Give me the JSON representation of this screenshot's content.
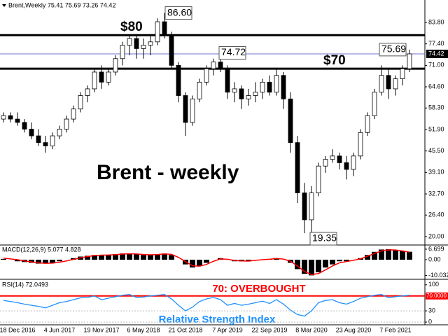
{
  "chart_data": [
    {
      "type": "candlestick",
      "header": "Brent,Weekly 75.41 75.69 73.26 74.42",
      "watermark": "Brent - weekly",
      "categories": [
        null,
        null,
        "18 Dec 2016",
        null,
        null,
        null,
        null,
        null,
        "4 Jun 2017",
        null,
        null,
        null,
        null,
        null,
        "19 Nov 2017",
        null,
        null,
        null,
        null,
        null,
        "6 May 2018",
        null,
        null,
        null,
        null,
        null,
        "21 Oct 2018",
        null,
        null,
        null,
        null,
        null,
        "7 Apr 2019",
        null,
        null,
        null,
        null,
        null,
        "22 Sep 2019",
        null,
        null,
        null,
        null,
        null,
        "8 Mar 2020",
        null,
        null,
        null,
        null,
        null,
        "23 Aug 2020",
        null,
        null,
        null,
        null,
        null,
        "7 Feb 2021",
        null,
        null
      ],
      "open": [
        55,
        56,
        55,
        54,
        52,
        50,
        48,
        47,
        50,
        52,
        55,
        58,
        62,
        64,
        69,
        66,
        69,
        73,
        77,
        79,
        76,
        77,
        78,
        84,
        80,
        71,
        62,
        54,
        61,
        66,
        70,
        72,
        70,
        63,
        64,
        61,
        62,
        63,
        66,
        63,
        68,
        61,
        48,
        33,
        25,
        33,
        41,
        43,
        44,
        42,
        40,
        44,
        51,
        56,
        63,
        68,
        64,
        67,
        70
      ],
      "high": [
        57,
        57,
        57,
        55,
        54,
        52,
        50,
        51,
        53,
        56,
        59,
        63,
        65,
        70,
        71,
        70,
        74,
        78,
        80,
        80,
        79,
        80,
        85,
        86.6,
        81,
        72,
        63,
        62,
        67,
        71,
        73,
        74.72,
        71,
        66,
        65,
        64,
        66,
        67,
        68,
        70,
        69,
        63,
        50,
        36,
        35,
        42,
        44,
        46,
        45,
        44,
        45,
        52,
        57,
        64,
        71,
        70,
        68,
        71,
        75.69
      ],
      "low": [
        54,
        54,
        53,
        51,
        49,
        47,
        45,
        46,
        49,
        51,
        54,
        57,
        60,
        63,
        64,
        65,
        68,
        71,
        74,
        73,
        73,
        74,
        77,
        79,
        70,
        60,
        50,
        53,
        60,
        65,
        68,
        69,
        61,
        60,
        58,
        59,
        60,
        61,
        62,
        62,
        58,
        45,
        30,
        21,
        19.35,
        32,
        39,
        42,
        40,
        37,
        38,
        43,
        50,
        55,
        62,
        61,
        62,
        65,
        69
      ],
      "close": [
        56,
        55,
        54,
        52,
        50,
        48,
        47,
        50,
        52,
        55,
        58,
        62,
        64,
        69,
        66,
        69,
        73,
        77,
        79,
        76,
        77,
        78,
        84,
        80,
        71,
        62,
        54,
        61,
        66,
        70,
        72,
        70,
        63,
        64,
        61,
        62,
        63,
        66,
        63,
        68,
        61,
        48,
        33,
        25,
        33,
        41,
        43,
        44,
        42,
        40,
        44,
        51,
        56,
        63,
        68,
        64,
        67,
        70,
        74.42
      ],
      "up_color": "#ffffff",
      "down_color": "#000000",
      "ylim": [
        17.9,
        90.47
      ],
      "yticks": [
        {
          "value": 83.8,
          "label": "83.80"
        },
        {
          "value": 77.4,
          "label": "77.40"
        },
        {
          "value": 71,
          "label": "71.00"
        },
        {
          "value": 64.6,
          "label": "64.60"
        },
        {
          "value": 58.3,
          "label": "58.30"
        },
        {
          "value": 51.9,
          "label": "51.90"
        },
        {
          "value": 45.5,
          "label": "45.50"
        },
        {
          "value": 39.1,
          "label": "39.10"
        },
        {
          "value": 32.7,
          "label": "32.70"
        },
        {
          "value": 26.4,
          "label": "26.40"
        },
        {
          "value": 20,
          "label": "20.00"
        }
      ],
      "levels": [
        {
          "value": 80,
          "label": "$80"
        },
        {
          "value": 70,
          "label": "$70"
        }
      ],
      "level_color": "#000000",
      "last_price": 74.42,
      "last_price_color": "#7070d0",
      "callouts": [
        {
          "value": 86.6,
          "label": "86.60"
        },
        74.72,
        75.69,
        19.35
      ]
    },
    {
      "type": "macd",
      "title": "MACD(12,26,9) 5.077 4.828",
      "values": [
        0.5,
        0,
        -1,
        -1.5,
        -2,
        -2.5,
        -2.5,
        -2,
        -1,
        0,
        1,
        2,
        2.5,
        3,
        3,
        3,
        3.5,
        4,
        4,
        3.5,
        3,
        3,
        3.5,
        4,
        3,
        0,
        -3,
        -5,
        -4,
        -2,
        0,
        1,
        0,
        -1,
        -1,
        -1,
        0,
        0,
        0.5,
        1,
        0,
        -2,
        -6,
        -9,
        -10,
        -8,
        -5,
        -3,
        -1,
        -1,
        0,
        1,
        3,
        5,
        6.5,
        6.7,
        6,
        5.5,
        5.077
      ],
      "signal": [
        1,
        0.5,
        0,
        -0.8,
        -1.4,
        -2,
        -2.3,
        -2.2,
        -1.6,
        -0.8,
        0.2,
        1.2,
        2,
        2.6,
        2.9,
        3,
        3.2,
        3.6,
        3.8,
        3.7,
        3.3,
        3.1,
        3.3,
        3.7,
        3.4,
        1.5,
        -1.2,
        -3.8,
        -4.2,
        -3,
        -1,
        0.5,
        0.3,
        -0.5,
        -0.8,
        -0.9,
        -0.4,
        0,
        0.3,
        0.8,
        0.4,
        -1,
        -4,
        -7.5,
        -9.5,
        -8.8,
        -6.5,
        -4,
        -2,
        -1.2,
        -0.4,
        0.6,
        2.2,
        4,
        5.6,
        6.3,
        6.2,
        5.6,
        4.828
      ],
      "color": "#000000",
      "signal_color": "#ff0000",
      "ylim": [
        -12.05,
        8.48
      ],
      "yticks": [
        6.699,
        {
          "value": 0,
          "label": "0.00"
        },
        -10.032
      ]
    },
    {
      "type": "rsi",
      "title": "RSI(14) 72.0493",
      "annotation": "70: OVERBOUGHT",
      "subtitle": "Relative Strength Index",
      "values": [
        58,
        55,
        52,
        48,
        45,
        42,
        38,
        45,
        52,
        55,
        60,
        65,
        66,
        70,
        60,
        64,
        68,
        72,
        74,
        66,
        67,
        70,
        72,
        74,
        62,
        45,
        30,
        40,
        55,
        62,
        66,
        60,
        45,
        50,
        45,
        48,
        52,
        56,
        50,
        60,
        48,
        32,
        20,
        16,
        30,
        52,
        58,
        60,
        52,
        48,
        55,
        64,
        68,
        72,
        74,
        65,
        68,
        70,
        72.0493
      ],
      "color": "#1e90ff",
      "ylim": [
        -5.5,
        110.9
      ],
      "yticks": [
        100,
        30,
        0
      ],
      "level": {
        "value": 70,
        "label": "70.0000"
      },
      "level_color": "#ff0000"
    }
  ]
}
